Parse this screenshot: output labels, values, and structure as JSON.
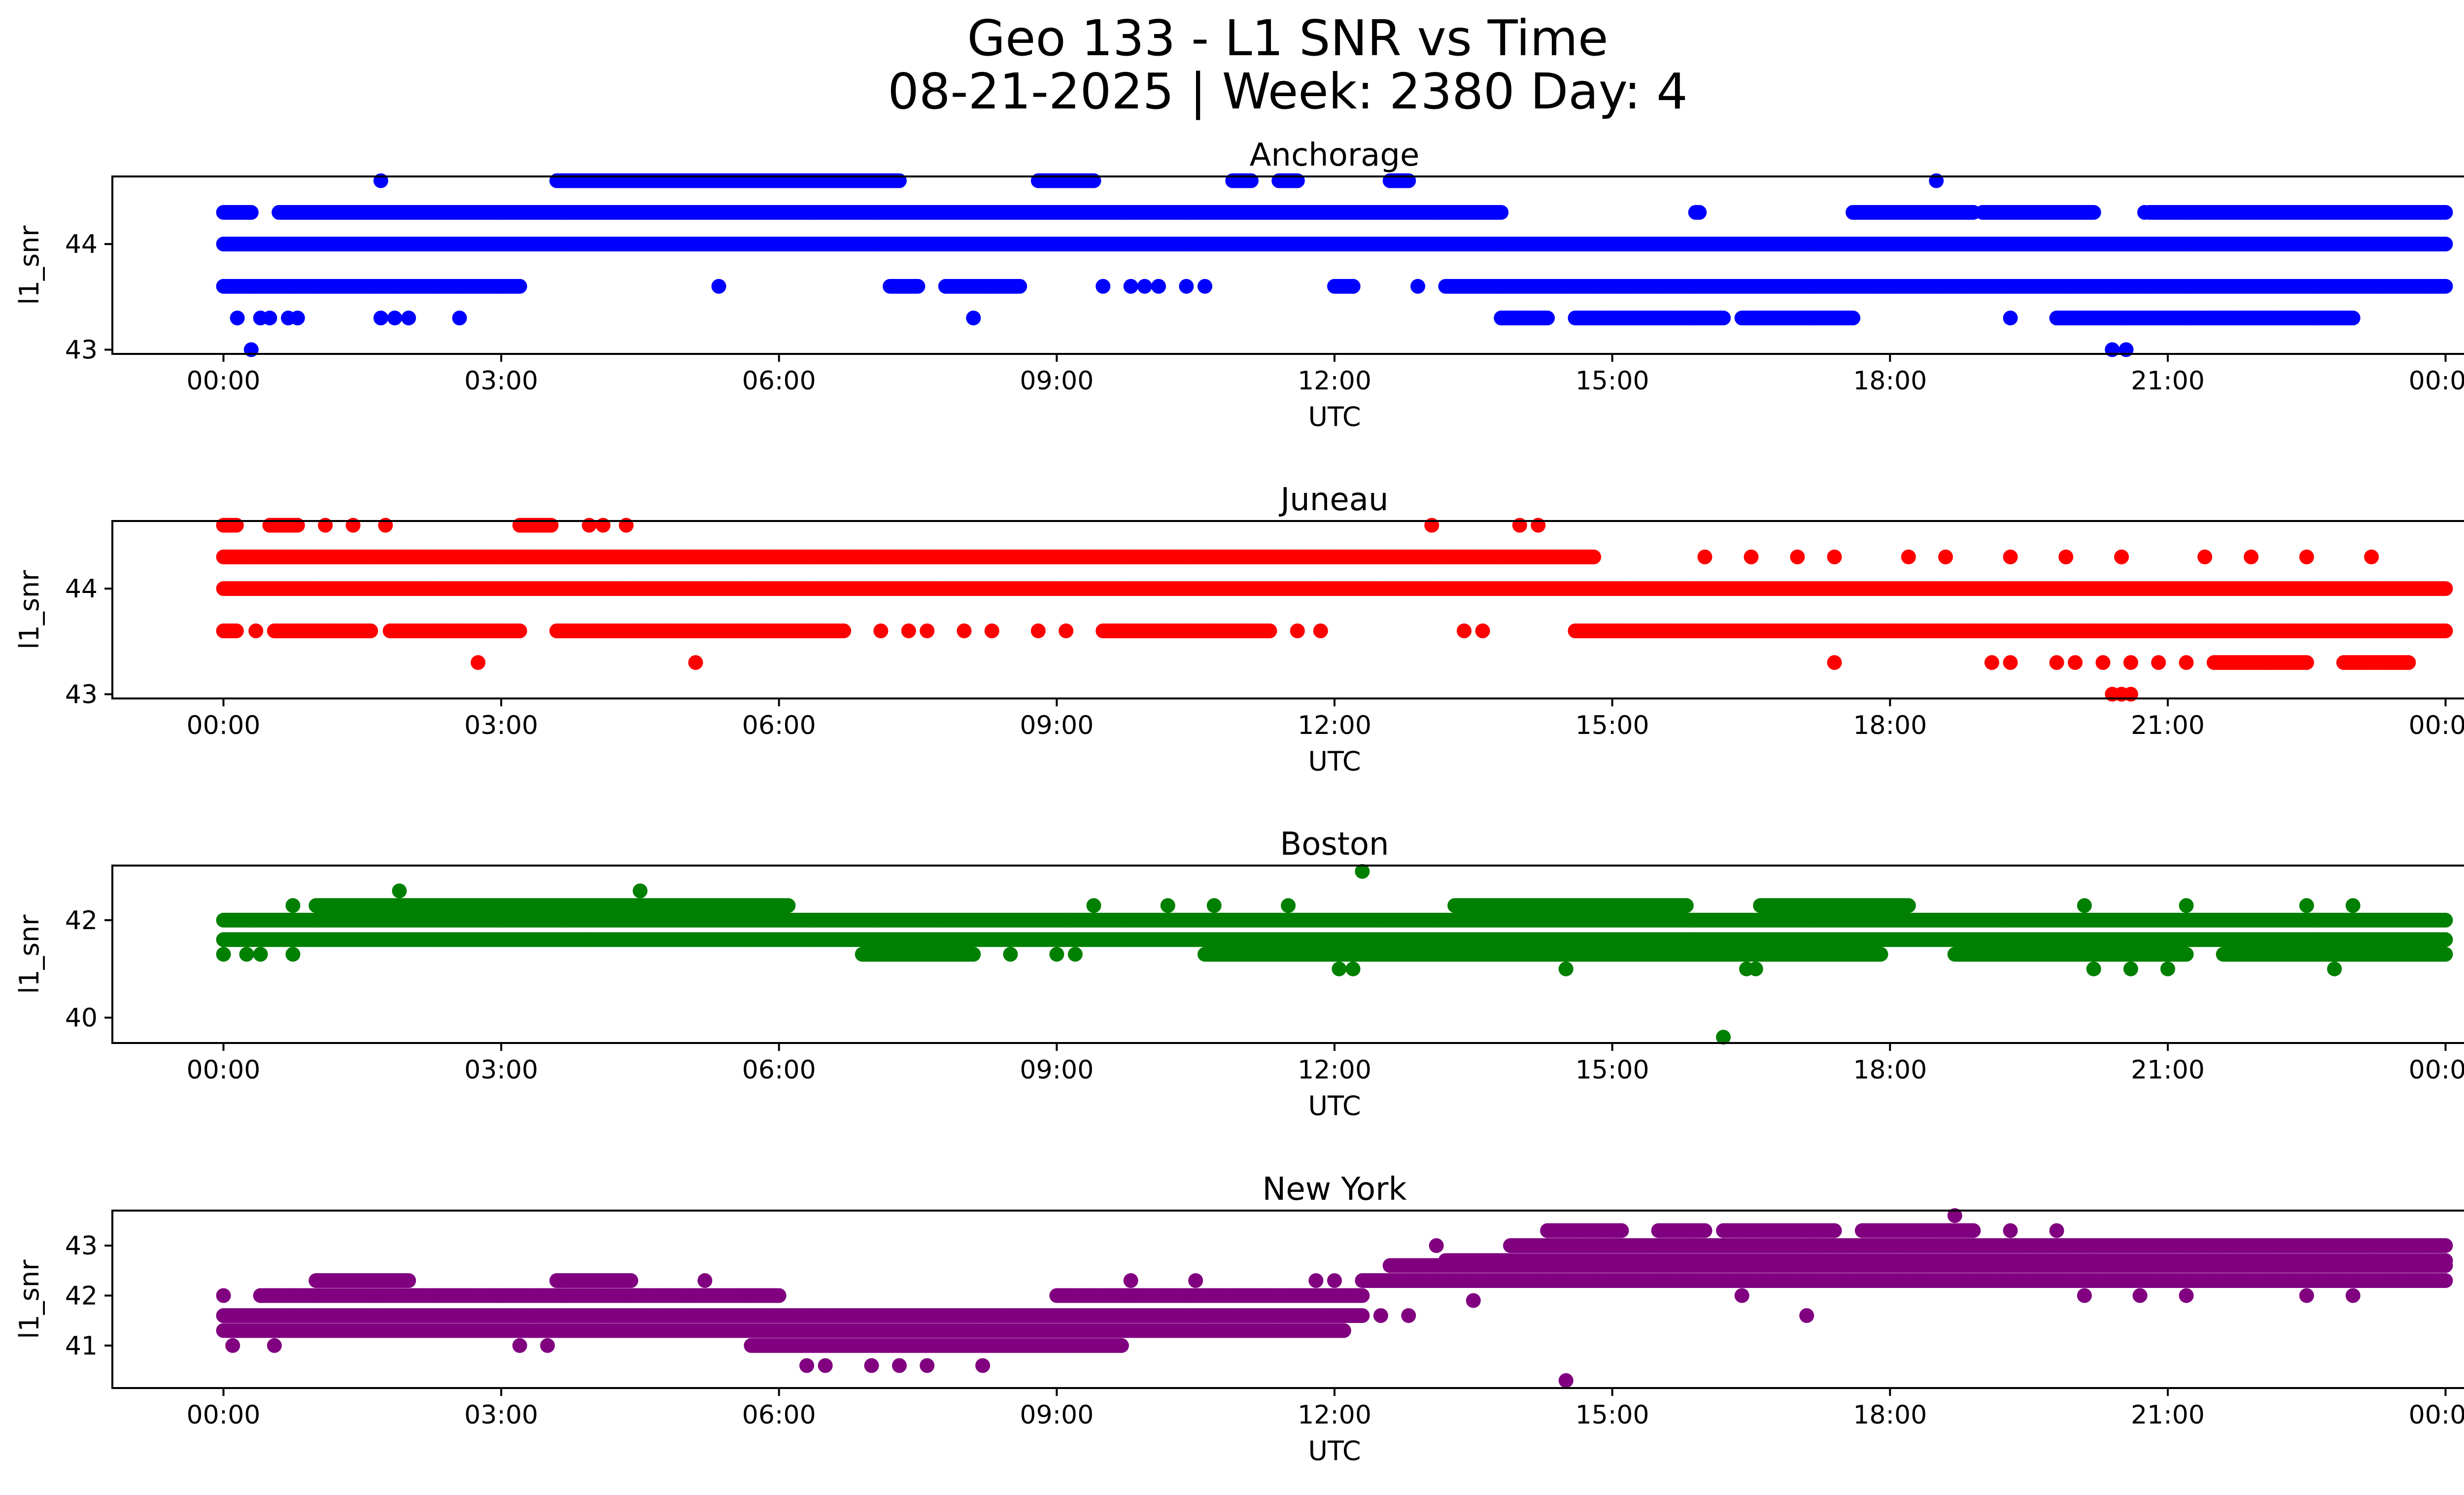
{
  "figure": {
    "title_line1": "Geo 133 - L1 SNR vs Time",
    "title_line2": "08-21-2025 | Week: 2380 Day: 4"
  },
  "chart_data": [
    {
      "type": "scatter",
      "title": "Anchorage",
      "xlabel": "UTC",
      "ylabel": "l1_snr",
      "color": "#0000ff",
      "x_tick_labels": [
        "00:00",
        "03:00",
        "06:00",
        "09:00",
        "12:00",
        "15:00",
        "18:00",
        "21:00",
        "00:00"
      ],
      "xlim_hours": [
        -1.2,
        25.2
      ],
      "ylim": [
        42.96,
        44.64
      ],
      "y_ticks": [
        43,
        44
      ],
      "bands": [
        {
          "y": 44.0,
          "segments": [
            [
              0.0,
              24.0
            ]
          ]
        },
        {
          "y": 44.3,
          "segments": [
            [
              0.0,
              0.3
            ],
            [
              0.6,
              13.8
            ],
            [
              15.9,
              15.95
            ],
            [
              17.6,
              18.9
            ],
            [
              19.0,
              20.2
            ],
            [
              20.8,
              24.0
            ]
          ]
        },
        {
          "y": 43.6,
          "segments": [
            [
              0.0,
              3.2
            ],
            [
              7.2,
              7.5
            ],
            [
              7.8,
              8.6
            ],
            [
              12.0,
              12.2
            ],
            [
              13.2,
              24.0
            ]
          ]
        },
        {
          "y": 44.6,
          "segments": [
            [
              3.6,
              7.3
            ],
            [
              8.8,
              9.4
            ],
            [
              10.9,
              11.1
            ],
            [
              11.4,
              11.6
            ],
            [
              12.6,
              12.8
            ]
          ]
        },
        {
          "y": 43.3,
          "segments": [
            [
              13.8,
              14.3
            ],
            [
              14.6,
              16.2
            ],
            [
              16.4,
              17.6
            ],
            [
              19.8,
              23.0
            ]
          ]
        }
      ],
      "points": [
        {
          "x": 0.3,
          "y": 43.0
        },
        {
          "x": 0.15,
          "y": 43.3
        },
        {
          "x": 0.4,
          "y": 43.3
        },
        {
          "x": 0.5,
          "y": 43.3
        },
        {
          "x": 0.7,
          "y": 43.3
        },
        {
          "x": 0.8,
          "y": 43.3
        },
        {
          "x": 1.7,
          "y": 43.3
        },
        {
          "x": 1.85,
          "y": 43.3
        },
        {
          "x": 2.0,
          "y": 43.3
        },
        {
          "x": 2.55,
          "y": 43.3
        },
        {
          "x": 8.1,
          "y": 43.3
        },
        {
          "x": 1.7,
          "y": 44.6
        },
        {
          "x": 5.35,
          "y": 43.6
        },
        {
          "x": 9.5,
          "y": 43.6
        },
        {
          "x": 9.8,
          "y": 43.6
        },
        {
          "x": 9.95,
          "y": 43.6
        },
        {
          "x": 10.1,
          "y": 43.6
        },
        {
          "x": 10.4,
          "y": 43.6
        },
        {
          "x": 10.6,
          "y": 43.6
        },
        {
          "x": 12.9,
          "y": 43.6
        },
        {
          "x": 18.5,
          "y": 44.6
        },
        {
          "x": 19.3,
          "y": 43.3
        },
        {
          "x": 20.4,
          "y": 43.0
        },
        {
          "x": 20.55,
          "y": 43.0
        },
        {
          "x": 20.75,
          "y": 44.3
        },
        {
          "x": 12.2,
          "y": 43.6
        }
      ]
    },
    {
      "type": "scatter",
      "title": "Juneau",
      "xlabel": "UTC",
      "ylabel": "l1_snr",
      "color": "#ff0000",
      "x_tick_labels": [
        "00:00",
        "03:00",
        "06:00",
        "09:00",
        "12:00",
        "15:00",
        "18:00",
        "21:00",
        "00:00"
      ],
      "xlim_hours": [
        -1.2,
        25.2
      ],
      "ylim": [
        42.96,
        44.64
      ],
      "y_ticks": [
        43,
        44
      ],
      "bands": [
        {
          "y": 44.0,
          "segments": [
            [
              0.0,
              24.0
            ]
          ]
        },
        {
          "y": 44.3,
          "segments": [
            [
              0.0,
              14.8
            ]
          ]
        },
        {
          "y": 43.6,
          "segments": [
            [
              0.0,
              0.15
            ],
            [
              0.55,
              1.6
            ],
            [
              1.8,
              3.2
            ],
            [
              3.6,
              6.7
            ],
            [
              9.5,
              11.3
            ],
            [
              14.6,
              24.0
            ]
          ]
        },
        {
          "y": 44.6,
          "segments": [
            [
              0.0,
              0.15
            ],
            [
              0.5,
              0.8
            ],
            [
              3.2,
              3.55
            ]
          ]
        },
        {
          "y": 43.3,
          "segments": [
            [
              21.5,
              22.5
            ],
            [
              22.9,
              23.6
            ]
          ]
        }
      ],
      "points": [
        {
          "x": 0.35,
          "y": 43.6
        },
        {
          "x": 7.1,
          "y": 43.6
        },
        {
          "x": 7.4,
          "y": 43.6
        },
        {
          "x": 7.6,
          "y": 43.6
        },
        {
          "x": 8.0,
          "y": 43.6
        },
        {
          "x": 8.3,
          "y": 43.6
        },
        {
          "x": 8.8,
          "y": 43.6
        },
        {
          "x": 9.1,
          "y": 43.6
        },
        {
          "x": 11.6,
          "y": 43.6
        },
        {
          "x": 11.85,
          "y": 43.6
        },
        {
          "x": 13.4,
          "y": 43.6
        },
        {
          "x": 13.6,
          "y": 43.6
        },
        {
          "x": 1.1,
          "y": 44.6
        },
        {
          "x": 1.4,
          "y": 44.6
        },
        {
          "x": 1.75,
          "y": 44.6
        },
        {
          "x": 3.95,
          "y": 44.6
        },
        {
          "x": 4.1,
          "y": 44.6
        },
        {
          "x": 4.35,
          "y": 44.6
        },
        {
          "x": 13.05,
          "y": 44.6
        },
        {
          "x": 14.0,
          "y": 44.6
        },
        {
          "x": 14.2,
          "y": 44.6
        },
        {
          "x": 2.75,
          "y": 43.3
        },
        {
          "x": 5.1,
          "y": 43.3
        },
        {
          "x": 17.4,
          "y": 43.3
        },
        {
          "x": 19.1,
          "y": 43.3
        },
        {
          "x": 19.3,
          "y": 43.3
        },
        {
          "x": 19.8,
          "y": 43.3
        },
        {
          "x": 20.0,
          "y": 43.3
        },
        {
          "x": 20.3,
          "y": 43.3
        },
        {
          "x": 20.6,
          "y": 43.3
        },
        {
          "x": 20.9,
          "y": 43.3
        },
        {
          "x": 21.2,
          "y": 43.3
        },
        {
          "x": 20.4,
          "y": 43.0
        },
        {
          "x": 20.5,
          "y": 43.0
        },
        {
          "x": 20.6,
          "y": 43.0
        },
        {
          "x": 16.0,
          "y": 44.3
        },
        {
          "x": 16.5,
          "y": 44.3
        },
        {
          "x": 17.0,
          "y": 44.3
        },
        {
          "x": 17.4,
          "y": 44.3
        },
        {
          "x": 18.2,
          "y": 44.3
        },
        {
          "x": 18.6,
          "y": 44.3
        },
        {
          "x": 19.3,
          "y": 44.3
        },
        {
          "x": 19.9,
          "y": 44.3
        },
        {
          "x": 20.5,
          "y": 44.3
        },
        {
          "x": 21.4,
          "y": 44.3
        },
        {
          "x": 21.9,
          "y": 44.3
        },
        {
          "x": 22.5,
          "y": 44.3
        },
        {
          "x": 23.2,
          "y": 44.3
        }
      ]
    },
    {
      "type": "scatter",
      "title": "Boston",
      "xlabel": "UTC",
      "ylabel": "l1_snr",
      "color": "#008000",
      "x_tick_labels": [
        "00:00",
        "03:00",
        "06:00",
        "09:00",
        "12:00",
        "15:00",
        "18:00",
        "21:00",
        "00:00"
      ],
      "xlim_hours": [
        -1.2,
        25.2
      ],
      "ylim": [
        39.48,
        43.12
      ],
      "y_ticks": [
        40,
        42
      ],
      "bands": [
        {
          "y": 42.0,
          "segments": [
            [
              0.0,
              24.0
            ]
          ]
        },
        {
          "y": 41.6,
          "segments": [
            [
              0.0,
              24.0
            ]
          ]
        },
        {
          "y": 42.3,
          "segments": [
            [
              1.0,
              6.1
            ],
            [
              13.3,
              15.8
            ],
            [
              16.6,
              18.2
            ]
          ]
        },
        {
          "y": 41.3,
          "segments": [
            [
              6.9,
              8.1
            ],
            [
              10.6,
              17.9
            ],
            [
              18.7,
              21.2
            ],
            [
              21.6,
              24.0
            ]
          ]
        }
      ],
      "points": [
        {
          "x": 0.0,
          "y": 41.3
        },
        {
          "x": 0.25,
          "y": 41.3
        },
        {
          "x": 0.4,
          "y": 41.3
        },
        {
          "x": 0.75,
          "y": 41.3
        },
        {
          "x": 0.75,
          "y": 42.3
        },
        {
          "x": 1.9,
          "y": 42.6
        },
        {
          "x": 4.5,
          "y": 42.6
        },
        {
          "x": 3.95,
          "y": 41.6
        },
        {
          "x": 8.5,
          "y": 41.3
        },
        {
          "x": 9.0,
          "y": 41.3
        },
        {
          "x": 9.2,
          "y": 41.3
        },
        {
          "x": 9.4,
          "y": 42.3
        },
        {
          "x": 10.2,
          "y": 42.3
        },
        {
          "x": 10.7,
          "y": 42.3
        },
        {
          "x": 11.5,
          "y": 42.3
        },
        {
          "x": 12.3,
          "y": 43.0
        },
        {
          "x": 12.05,
          "y": 41.0
        },
        {
          "x": 12.2,
          "y": 41.0
        },
        {
          "x": 14.5,
          "y": 41.0
        },
        {
          "x": 16.2,
          "y": 39.6
        },
        {
          "x": 16.45,
          "y": 41.0
        },
        {
          "x": 16.55,
          "y": 41.0
        },
        {
          "x": 20.2,
          "y": 41.0
        },
        {
          "x": 20.6,
          "y": 41.0
        },
        {
          "x": 21.0,
          "y": 41.0
        },
        {
          "x": 22.8,
          "y": 41.0
        },
        {
          "x": 20.1,
          "y": 42.3
        },
        {
          "x": 21.2,
          "y": 42.3
        },
        {
          "x": 22.5,
          "y": 42.3
        },
        {
          "x": 23.0,
          "y": 42.3
        }
      ]
    },
    {
      "type": "scatter",
      "title": "New York",
      "xlabel": "UTC",
      "ylabel": "l1_snr",
      "color": "#800080",
      "x_tick_labels": [
        "00:00",
        "03:00",
        "06:00",
        "09:00",
        "12:00",
        "15:00",
        "18:00",
        "21:00",
        "00:00"
      ],
      "xlim_hours": [
        -1.2,
        25.2
      ],
      "ylim": [
        40.15,
        43.7
      ],
      "y_ticks": [
        41,
        42,
        43
      ],
      "bands": [
        {
          "y": 41.6,
          "segments": [
            [
              0.0,
              12.3
            ]
          ]
        },
        {
          "y": 41.3,
          "segments": [
            [
              0.0,
              12.1
            ]
          ]
        },
        {
          "y": 42.0,
          "segments": [
            [
              0.4,
              6.0
            ],
            [
              9.0,
              12.3
            ]
          ]
        },
        {
          "y": 41.0,
          "segments": [
            [
              5.7,
              9.7
            ]
          ]
        },
        {
          "y": 42.3,
          "segments": [
            [
              1.0,
              2.0
            ],
            [
              3.6,
              4.4
            ],
            [
              12.3,
              24.0
            ]
          ]
        },
        {
          "y": 42.6,
          "segments": [
            [
              12.6,
              24.0
            ]
          ]
        },
        {
          "y": 42.7,
          "segments": [
            [
              13.2,
              24.0
            ]
          ]
        },
        {
          "y": 43.0,
          "segments": [
            [
              13.9,
              24.0
            ]
          ]
        },
        {
          "y": 43.3,
          "segments": [
            [
              14.3,
              15.1
            ],
            [
              15.5,
              16.0
            ],
            [
              16.2,
              17.4
            ],
            [
              17.7,
              18.9
            ]
          ]
        }
      ],
      "points": [
        {
          "x": 0.0,
          "y": 42.0
        },
        {
          "x": 0.1,
          "y": 41.0
        },
        {
          "x": 0.55,
          "y": 41.0
        },
        {
          "x": 3.2,
          "y": 41.0
        },
        {
          "x": 3.5,
          "y": 41.0
        },
        {
          "x": 5.2,
          "y": 42.3
        },
        {
          "x": 6.3,
          "y": 40.6
        },
        {
          "x": 6.5,
          "y": 40.6
        },
        {
          "x": 7.0,
          "y": 40.6
        },
        {
          "x": 7.3,
          "y": 40.6
        },
        {
          "x": 7.6,
          "y": 40.6
        },
        {
          "x": 8.2,
          "y": 40.6
        },
        {
          "x": 9.8,
          "y": 42.3
        },
        {
          "x": 10.5,
          "y": 42.3
        },
        {
          "x": 11.8,
          "y": 42.3
        },
        {
          "x": 12.0,
          "y": 42.3
        },
        {
          "x": 13.1,
          "y": 43.0
        },
        {
          "x": 14.5,
          "y": 40.3
        },
        {
          "x": 18.7,
          "y": 43.6
        },
        {
          "x": 19.3,
          "y": 43.3
        },
        {
          "x": 19.8,
          "y": 43.3
        },
        {
          "x": 20.1,
          "y": 42.0
        },
        {
          "x": 20.7,
          "y": 42.0
        },
        {
          "x": 21.2,
          "y": 42.0
        },
        {
          "x": 22.5,
          "y": 42.0
        },
        {
          "x": 23.0,
          "y": 42.0
        },
        {
          "x": 17.1,
          "y": 41.6
        },
        {
          "x": 16.4,
          "y": 42.0
        },
        {
          "x": 12.5,
          "y": 41.6
        },
        {
          "x": 12.8,
          "y": 41.6
        },
        {
          "x": 13.5,
          "y": 41.9
        }
      ]
    }
  ]
}
